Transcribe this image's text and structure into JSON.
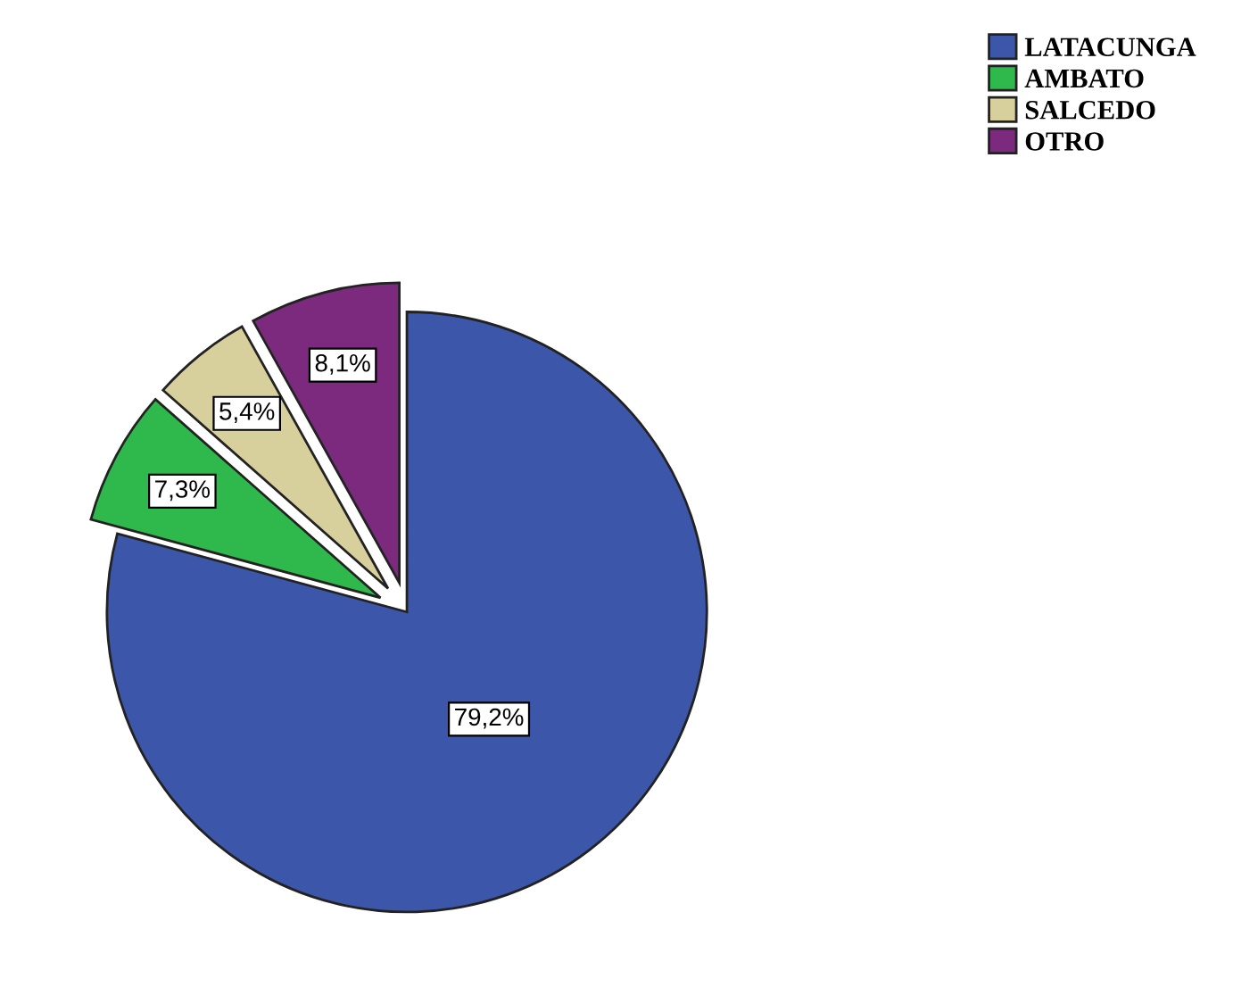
{
  "chart_data": {
    "type": "pie",
    "categories": [
      "LATACUNGA",
      "AMBATO",
      "SALCEDO",
      "OTRO"
    ],
    "values": [
      79.2,
      7.3,
      5.4,
      8.1
    ],
    "value_labels": [
      "79,2%",
      "7,3%",
      "5,4%",
      "8,1%"
    ],
    "colors": [
      "#3c56a9",
      "#2fb84b",
      "#d7d09d",
      "#7b2a7d"
    ],
    "legend": "top right"
  }
}
